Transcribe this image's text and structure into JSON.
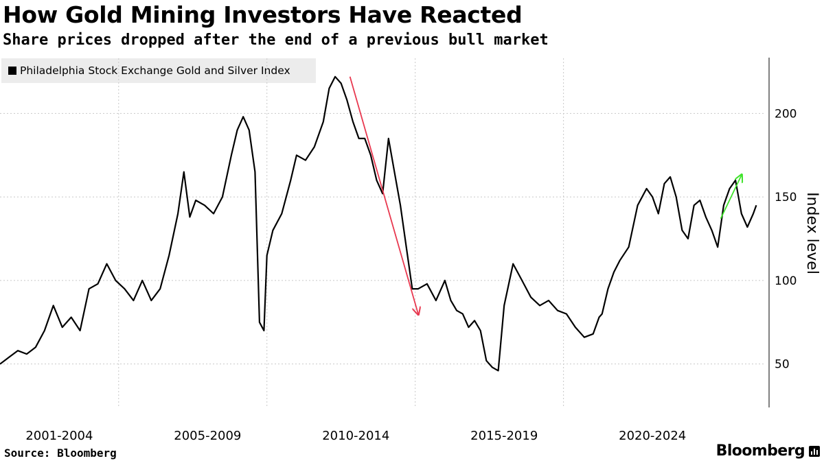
{
  "header": {
    "title": "How Gold Mining Investors Have Reacted",
    "subtitle": "Share prices dropped after the end of a previous bull market"
  },
  "legend": {
    "label": "Philadelphia Stock Exchange Gold and Silver Index"
  },
  "footer": {
    "source": "Source: Bloomberg",
    "brand": "Bloomberg"
  },
  "chart_data": {
    "type": "line",
    "title": "How Gold Mining Investors Have Reacted",
    "subtitle": "Share prices dropped after the end of a previous bull market",
    "xlabel": "",
    "ylabel": "Index level",
    "xlim": [
      2000.0,
      2025.7
    ],
    "ylim": [
      24,
      233
    ],
    "y_ticks": [
      50,
      100,
      150,
      200
    ],
    "x_period_labels": [
      "2001-2004",
      "2005-2009",
      "2010-2014",
      "2015-2019",
      "2020-2024"
    ],
    "x_period_label_centers": [
      2002.0,
      2007.0,
      2012.0,
      2017.0,
      2022.0
    ],
    "x_gridlines": [
      2004.0,
      2009.0,
      2014.0,
      2019.0
    ],
    "grid": "horizontal dotted, vertical dotted separators",
    "legend_position": "top-left",
    "series": [
      {
        "name": "Philadelphia Stock Exchange Gold and Silver Index",
        "color": "#000000",
        "x": [
          2000.0,
          2000.3,
          2000.6,
          2000.9,
          2001.2,
          2001.5,
          2001.8,
          2002.1,
          2002.4,
          2002.7,
          2003.0,
          2003.3,
          2003.6,
          2003.9,
          2004.2,
          2004.5,
          2004.8,
          2005.1,
          2005.4,
          2005.7,
          2006.0,
          2006.2,
          2006.4,
          2006.6,
          2006.9,
          2007.2,
          2007.5,
          2007.8,
          2008.0,
          2008.2,
          2008.4,
          2008.6,
          2008.75,
          2008.9,
          2009.0,
          2009.2,
          2009.5,
          2009.8,
          2010.0,
          2010.3,
          2010.6,
          2010.9,
          2011.1,
          2011.3,
          2011.5,
          2011.7,
          2011.9,
          2012.1,
          2012.3,
          2012.5,
          2012.7,
          2012.9,
          2013.1,
          2013.3,
          2013.5,
          2013.7,
          2013.9,
          2014.1,
          2014.4,
          2014.7,
          2015.0,
          2015.2,
          2015.4,
          2015.6,
          2015.8,
          2016.0,
          2016.2,
          2016.4,
          2016.6,
          2016.8,
          2017.0,
          2017.3,
          2017.6,
          2017.9,
          2018.2,
          2018.5,
          2018.8,
          2019.1,
          2019.4,
          2019.7,
          2020.0,
          2020.2,
          2020.3,
          2020.5,
          2020.7,
          2020.9,
          2021.2,
          2021.5,
          2021.8,
          2022.0,
          2022.2,
          2022.4,
          2022.6,
          2022.8,
          2023.0,
          2023.2,
          2023.4,
          2023.6,
          2023.8,
          2024.0,
          2024.2,
          2024.4,
          2024.6,
          2024.8,
          2025.0,
          2025.2,
          2025.4,
          2025.5
        ],
        "values": [
          50,
          54,
          58,
          56,
          60,
          70,
          85,
          72,
          78,
          70,
          95,
          98,
          110,
          100,
          95,
          88,
          100,
          88,
          95,
          115,
          140,
          165,
          138,
          148,
          145,
          140,
          150,
          175,
          190,
          198,
          190,
          165,
          75,
          70,
          115,
          130,
          140,
          160,
          175,
          172,
          180,
          195,
          215,
          222,
          218,
          208,
          195,
          185,
          185,
          175,
          160,
          152,
          185,
          165,
          145,
          120,
          95,
          95,
          98,
          88,
          100,
          88,
          82,
          80,
          72,
          76,
          70,
          52,
          48,
          46,
          85,
          110,
          100,
          90,
          85,
          88,
          82,
          80,
          72,
          66,
          68,
          78,
          80,
          95,
          105,
          112,
          120,
          145,
          155,
          150,
          140,
          158,
          162,
          150,
          130,
          125,
          145,
          148,
          138,
          130,
          120,
          145,
          155,
          160,
          140,
          132,
          140,
          145
        ],
        "annotations": [
          {
            "type": "arrow",
            "color": "#e8384f",
            "x": [
              2011.8,
              2014.1
            ],
            "y": [
              222,
              80
            ]
          },
          {
            "type": "arrow",
            "color": "#3fe32a",
            "x": [
              2024.3,
              2025.0
            ],
            "y": [
              137,
              163
            ]
          }
        ]
      }
    ]
  },
  "colors": {
    "line": "#000000",
    "down_arrow": "#e8384f",
    "up_arrow": "#3fe32a",
    "gridline": "#c8c8c8",
    "legend_bg": "#ececec"
  }
}
